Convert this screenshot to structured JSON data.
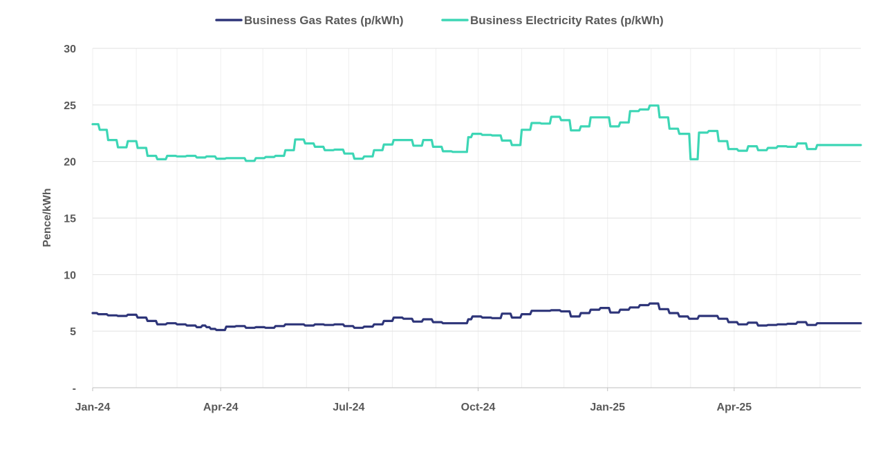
{
  "chart_data": {
    "type": "line",
    "title": "",
    "xlabel": "",
    "ylabel": "Pence/kWh",
    "ylim": [
      0,
      30
    ],
    "yticks": [
      {
        "value": 30,
        "label": "30"
      },
      {
        "value": 25,
        "label": "25"
      },
      {
        "value": 20,
        "label": "20"
      },
      {
        "value": 15,
        "label": "15"
      },
      {
        "value": 10,
        "label": "10"
      },
      {
        "value": 5,
        "label": "5"
      },
      {
        "value": 0,
        "label": "-"
      }
    ],
    "xlim": [
      "2024-01-01",
      "2025-06-30"
    ],
    "xticks": [
      {
        "date": "2024-01-01",
        "label": "Jan-24"
      },
      {
        "date": "2024-04-01",
        "label": "Apr-24"
      },
      {
        "date": "2024-07-01",
        "label": "Jul-24"
      },
      {
        "date": "2024-10-01",
        "label": "Oct-24"
      },
      {
        "date": "2025-01-01",
        "label": "Jan-25"
      },
      {
        "date": "2025-04-01",
        "label": "Apr-25"
      }
    ],
    "vgrid_dates": [
      "2024-01-01",
      "2024-02-01",
      "2024-03-01",
      "2024-04-01",
      "2024-05-01",
      "2024-06-01",
      "2024-07-01",
      "2024-08-01",
      "2024-09-01",
      "2024-10-01",
      "2024-11-01",
      "2024-12-01",
      "2025-01-01",
      "2025-02-01",
      "2025-03-01",
      "2025-04-01",
      "2025-05-01",
      "2025-06-01"
    ],
    "grid": true,
    "legend": "top",
    "series": [
      {
        "name": "Business Gas Rates (p/kWh)",
        "color": "#2e3579",
        "points": [
          [
            "2024-01-01",
            6.6
          ],
          [
            "2024-01-05",
            6.5
          ],
          [
            "2024-01-12",
            6.4
          ],
          [
            "2024-01-19",
            6.35
          ],
          [
            "2024-01-26",
            6.45
          ],
          [
            "2024-02-02",
            6.2
          ],
          [
            "2024-02-09",
            5.9
          ],
          [
            "2024-02-16",
            5.6
          ],
          [
            "2024-02-23",
            5.7
          ],
          [
            "2024-03-01",
            5.6
          ],
          [
            "2024-03-08",
            5.5
          ],
          [
            "2024-03-15",
            5.35
          ],
          [
            "2024-03-19",
            5.5
          ],
          [
            "2024-03-22",
            5.35
          ],
          [
            "2024-03-25",
            5.2
          ],
          [
            "2024-03-29",
            5.1
          ],
          [
            "2024-04-05",
            5.4
          ],
          [
            "2024-04-12",
            5.45
          ],
          [
            "2024-04-19",
            5.3
          ],
          [
            "2024-04-26",
            5.35
          ],
          [
            "2024-05-03",
            5.3
          ],
          [
            "2024-05-10",
            5.45
          ],
          [
            "2024-05-17",
            5.6
          ],
          [
            "2024-05-24",
            5.6
          ],
          [
            "2024-05-31",
            5.5
          ],
          [
            "2024-06-07",
            5.6
          ],
          [
            "2024-06-14",
            5.55
          ],
          [
            "2024-06-21",
            5.6
          ],
          [
            "2024-06-28",
            5.45
          ],
          [
            "2024-07-05",
            5.3
          ],
          [
            "2024-07-12",
            5.4
          ],
          [
            "2024-07-19",
            5.6
          ],
          [
            "2024-07-26",
            5.9
          ],
          [
            "2024-08-02",
            6.2
          ],
          [
            "2024-08-09",
            6.1
          ],
          [
            "2024-08-16",
            5.85
          ],
          [
            "2024-08-23",
            6.05
          ],
          [
            "2024-08-30",
            5.8
          ],
          [
            "2024-09-06",
            5.7
          ],
          [
            "2024-09-13",
            5.7
          ],
          [
            "2024-09-24",
            6.05
          ],
          [
            "2024-09-27",
            6.3
          ],
          [
            "2024-10-04",
            6.2
          ],
          [
            "2024-10-11",
            6.15
          ],
          [
            "2024-10-18",
            6.55
          ],
          [
            "2024-10-25",
            6.2
          ],
          [
            "2024-11-01",
            6.5
          ],
          [
            "2024-11-08",
            6.8
          ],
          [
            "2024-11-15",
            6.8
          ],
          [
            "2024-11-22",
            6.85
          ],
          [
            "2024-11-29",
            6.75
          ],
          [
            "2024-12-06",
            6.3
          ],
          [
            "2024-12-13",
            6.6
          ],
          [
            "2024-12-20",
            6.9
          ],
          [
            "2024-12-27",
            7.05
          ],
          [
            "2025-01-03",
            6.65
          ],
          [
            "2025-01-10",
            6.9
          ],
          [
            "2025-01-17",
            7.1
          ],
          [
            "2025-01-24",
            7.3
          ],
          [
            "2025-01-31",
            7.45
          ],
          [
            "2025-02-07",
            6.95
          ],
          [
            "2025-02-14",
            6.6
          ],
          [
            "2025-02-21",
            6.3
          ],
          [
            "2025-02-28",
            6.1
          ],
          [
            "2025-03-07",
            6.35
          ],
          [
            "2025-03-14",
            6.35
          ],
          [
            "2025-03-21",
            6.1
          ],
          [
            "2025-03-28",
            5.8
          ],
          [
            "2025-04-04",
            5.6
          ],
          [
            "2025-04-11",
            5.75
          ],
          [
            "2025-04-18",
            5.5
          ],
          [
            "2025-04-25",
            5.55
          ],
          [
            "2025-05-02",
            5.6
          ],
          [
            "2025-05-09",
            5.65
          ],
          [
            "2025-05-16",
            5.8
          ],
          [
            "2025-05-23",
            5.55
          ],
          [
            "2025-05-30",
            5.7
          ],
          [
            "2025-06-30",
            5.7
          ]
        ]
      },
      {
        "name": "Business Electricity Rates (p/kWh)",
        "color": "#3dd6b5",
        "points": [
          [
            "2024-01-01",
            23.3
          ],
          [
            "2024-01-06",
            22.8
          ],
          [
            "2024-01-12",
            21.9
          ],
          [
            "2024-01-19",
            21.25
          ],
          [
            "2024-01-26",
            21.8
          ],
          [
            "2024-02-02",
            21.2
          ],
          [
            "2024-02-09",
            20.5
          ],
          [
            "2024-02-16",
            20.2
          ],
          [
            "2024-02-23",
            20.5
          ],
          [
            "2024-03-01",
            20.45
          ],
          [
            "2024-03-08",
            20.5
          ],
          [
            "2024-03-15",
            20.35
          ],
          [
            "2024-03-22",
            20.45
          ],
          [
            "2024-03-29",
            20.25
          ],
          [
            "2024-04-05",
            20.3
          ],
          [
            "2024-04-12",
            20.3
          ],
          [
            "2024-04-19",
            20.05
          ],
          [
            "2024-04-26",
            20.3
          ],
          [
            "2024-05-03",
            20.4
          ],
          [
            "2024-05-10",
            20.5
          ],
          [
            "2024-05-17",
            21.0
          ],
          [
            "2024-05-24",
            21.95
          ],
          [
            "2024-05-31",
            21.6
          ],
          [
            "2024-06-07",
            21.3
          ],
          [
            "2024-06-14",
            21.0
          ],
          [
            "2024-06-21",
            21.05
          ],
          [
            "2024-06-28",
            20.7
          ],
          [
            "2024-07-05",
            20.25
          ],
          [
            "2024-07-12",
            20.45
          ],
          [
            "2024-07-19",
            21.0
          ],
          [
            "2024-07-26",
            21.5
          ],
          [
            "2024-08-02",
            21.9
          ],
          [
            "2024-08-09",
            21.9
          ],
          [
            "2024-08-16",
            21.4
          ],
          [
            "2024-08-23",
            21.9
          ],
          [
            "2024-08-30",
            21.3
          ],
          [
            "2024-09-06",
            20.9
          ],
          [
            "2024-09-13",
            20.85
          ],
          [
            "2024-09-24",
            22.15
          ],
          [
            "2024-09-27",
            22.45
          ],
          [
            "2024-10-04",
            22.35
          ],
          [
            "2024-10-11",
            22.3
          ],
          [
            "2024-10-18",
            21.85
          ],
          [
            "2024-10-25",
            21.45
          ],
          [
            "2024-11-01",
            22.8
          ],
          [
            "2024-11-08",
            23.4
          ],
          [
            "2024-11-15",
            23.35
          ],
          [
            "2024-11-22",
            23.95
          ],
          [
            "2024-11-29",
            23.65
          ],
          [
            "2024-12-06",
            22.75
          ],
          [
            "2024-12-13",
            23.1
          ],
          [
            "2024-12-20",
            23.9
          ],
          [
            "2024-12-27",
            23.9
          ],
          [
            "2025-01-03",
            23.1
          ],
          [
            "2025-01-10",
            23.45
          ],
          [
            "2025-01-17",
            24.45
          ],
          [
            "2025-01-24",
            24.6
          ],
          [
            "2025-01-31",
            24.95
          ],
          [
            "2025-02-07",
            23.9
          ],
          [
            "2025-02-14",
            22.9
          ],
          [
            "2025-02-21",
            22.45
          ],
          [
            "2025-03-01",
            20.2
          ],
          [
            "2025-03-07",
            22.55
          ],
          [
            "2025-03-14",
            22.7
          ],
          [
            "2025-03-21",
            21.8
          ],
          [
            "2025-03-28",
            21.1
          ],
          [
            "2025-04-04",
            20.95
          ],
          [
            "2025-04-11",
            21.35
          ],
          [
            "2025-04-18",
            21.0
          ],
          [
            "2025-04-25",
            21.2
          ],
          [
            "2025-05-02",
            21.35
          ],
          [
            "2025-05-09",
            21.3
          ],
          [
            "2025-05-16",
            21.6
          ],
          [
            "2025-05-23",
            21.1
          ],
          [
            "2025-05-30",
            21.45
          ],
          [
            "2025-06-30",
            21.45
          ]
        ]
      }
    ]
  }
}
